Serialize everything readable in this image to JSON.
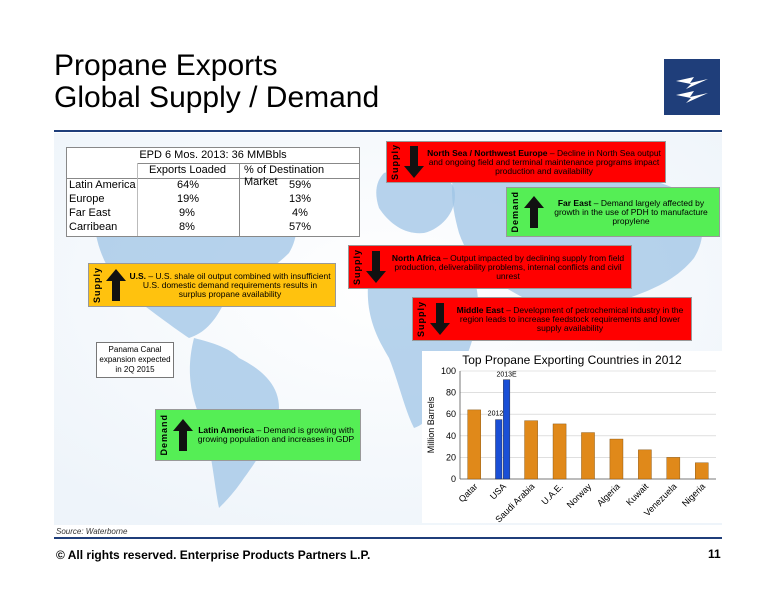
{
  "title_line1": "Propane Exports",
  "title_line2": "Global Supply / Demand",
  "table": {
    "heading": "EPD 6 Mos. 2013:  36 MMBbls",
    "col1": "Exports Loaded",
    "col2": "% of Destination Market",
    "rows": [
      {
        "region": "Latin America",
        "loaded": "64%",
        "market": "59%"
      },
      {
        "region": "Europe",
        "loaded": "19%",
        "market": "13%"
      },
      {
        "region": "Far East",
        "loaded": "9%",
        "market": "4%"
      },
      {
        "region": "Carribean",
        "loaded": "8%",
        "market": "57%"
      }
    ]
  },
  "boxes": {
    "us": {
      "side": "Supply",
      "bold": "U.S.",
      "text": " – U.S. shale oil output combined with insufficient U.S. domestic demand requirements results in surplus propane availability",
      "color": "#ffc20e",
      "arrow": "up"
    },
    "north_sea": {
      "side": "Supply",
      "bold": "North Sea / Northwest Europe",
      "text": " – Decline in North Sea output and ongoing field and terminal maintenance programs impact production and availability",
      "color": "#ff0000",
      "arrow": "down"
    },
    "far_east": {
      "side": "Demand",
      "bold": "Far East",
      "text": " – Demand largely affected by growth in the use of PDH to manufacture propylene",
      "color": "#55ee55",
      "arrow": "up"
    },
    "north_africa": {
      "side": "Supply",
      "bold": "North Africa",
      "text": " – Output impacted by declining supply from field production, deliverability problems, internal conflicts and civil unrest",
      "color": "#ff0000",
      "arrow": "down"
    },
    "middle_east": {
      "side": "Supply",
      "bold": "Middle East",
      "text": " – Development of petrochemical industry in the region leads to increase feedstock requirements and lower supply availability",
      "color": "#ff0000",
      "arrow": "down"
    },
    "latin_america": {
      "side": "Demand",
      "bold": "Latin America",
      "text": " – Demand is growing with growing population and increases in GDP",
      "color": "#55ee55",
      "arrow": "up"
    }
  },
  "callout": "Panama Canal expansion expected in 2Q 2015",
  "chart_data": {
    "type": "bar",
    "title": "Top Propane Exporting Countries in 2012",
    "ylabel": "Million Barrels",
    "ylim": [
      0,
      100
    ],
    "yticks": [
      0,
      20,
      40,
      60,
      80,
      100
    ],
    "categories": [
      "Qatar",
      "USA",
      "Saudi Arabia",
      "U.A.E.",
      "Norway",
      "Algeria",
      "Kuwait",
      "Venezuela",
      "Nigeria"
    ],
    "values": [
      64,
      55,
      54,
      51,
      43,
      37,
      27,
      20,
      15
    ],
    "usa_series": [
      {
        "name": "2012",
        "value": 55,
        "color": "#1a4fd6"
      },
      {
        "name": "2013E",
        "value": 92,
        "color": "#1a4fd6"
      }
    ],
    "bar_color": "#e0891a"
  },
  "source": "Source:  Waterborne",
  "footer": "©  All rights reserved. Enterprise Products Partners L.P.",
  "page_number": "11",
  "colors": {
    "navy": "#1f3e7a",
    "map_light": "#cfe3f4",
    "map_land": "#dce9f5"
  }
}
